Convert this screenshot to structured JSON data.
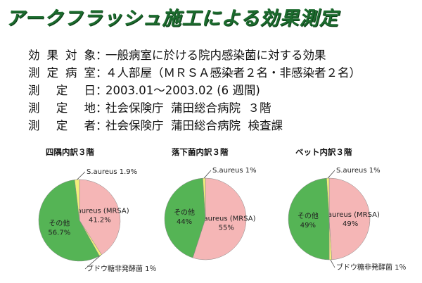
{
  "title": "アークフラッシュ施工による効果測定",
  "info": [
    {
      "label": "効果対象",
      "value": "一般病室に於ける院内感染菌に対する効果"
    },
    {
      "label": "測定病室",
      "value": "４人部屋（ＭＲＳＡ感染者２名・非感染者２名）"
    },
    {
      "label": "測定日",
      "value": "2003.01～2003.02 (6 週間)"
    },
    {
      "label": "測定地",
      "value": "社会保険庁  蒲田総合病院  ３階"
    },
    {
      "label": "測定者",
      "value": "社会保険庁  蒲田総合病院  検査課"
    }
  ],
  "separator": "：",
  "colors": {
    "title": "#1c6b2e",
    "mrsa": "#f5b6b6",
    "other": "#55b455",
    "small": "#f2f07a"
  },
  "chart_data": [
    {
      "type": "pie",
      "title": "四隅内訳３階",
      "slices": [
        {
          "label": "S.aureus (MRSA)",
          "value": 41.2,
          "text": "S.aureus (MRSA)",
          "pct": "41.2%"
        },
        {
          "label": "ブドウ糖非発酵菌",
          "value": 1,
          "text": "ブドウ糖非発酵菌 1％"
        },
        {
          "label": "その他",
          "value": 56.7,
          "text": "その他",
          "pct": "56.7%"
        },
        {
          "label": "S.aureus",
          "value": 1.9,
          "text": "S.aureus 1.9%"
        }
      ]
    },
    {
      "type": "pie",
      "title": "落下菌内訳３階",
      "slices": [
        {
          "label": "S.aureus (MRSA)",
          "value": 55,
          "text": "S.aureus (MRSA)",
          "pct": "55%"
        },
        {
          "label": "その他",
          "value": 44,
          "text": "その他",
          "pct": "44%"
        },
        {
          "label": "S.aureus",
          "value": 1,
          "text": "S.aureus 1%"
        }
      ]
    },
    {
      "type": "pie",
      "title": "ベット内訳３階",
      "slices": [
        {
          "label": "S.aureus (MRSA)",
          "value": 49,
          "text": "S.aureus (MRSA)",
          "pct": "49%"
        },
        {
          "label": "ブドウ糖非発酵菌",
          "value": 1,
          "text": "ブドウ糖非発酵菌 1％"
        },
        {
          "label": "その他",
          "value": 49,
          "text": "その他",
          "pct": "49%"
        },
        {
          "label": "S.aureus",
          "value": 1,
          "text": "S.aureus 1%"
        }
      ]
    }
  ]
}
